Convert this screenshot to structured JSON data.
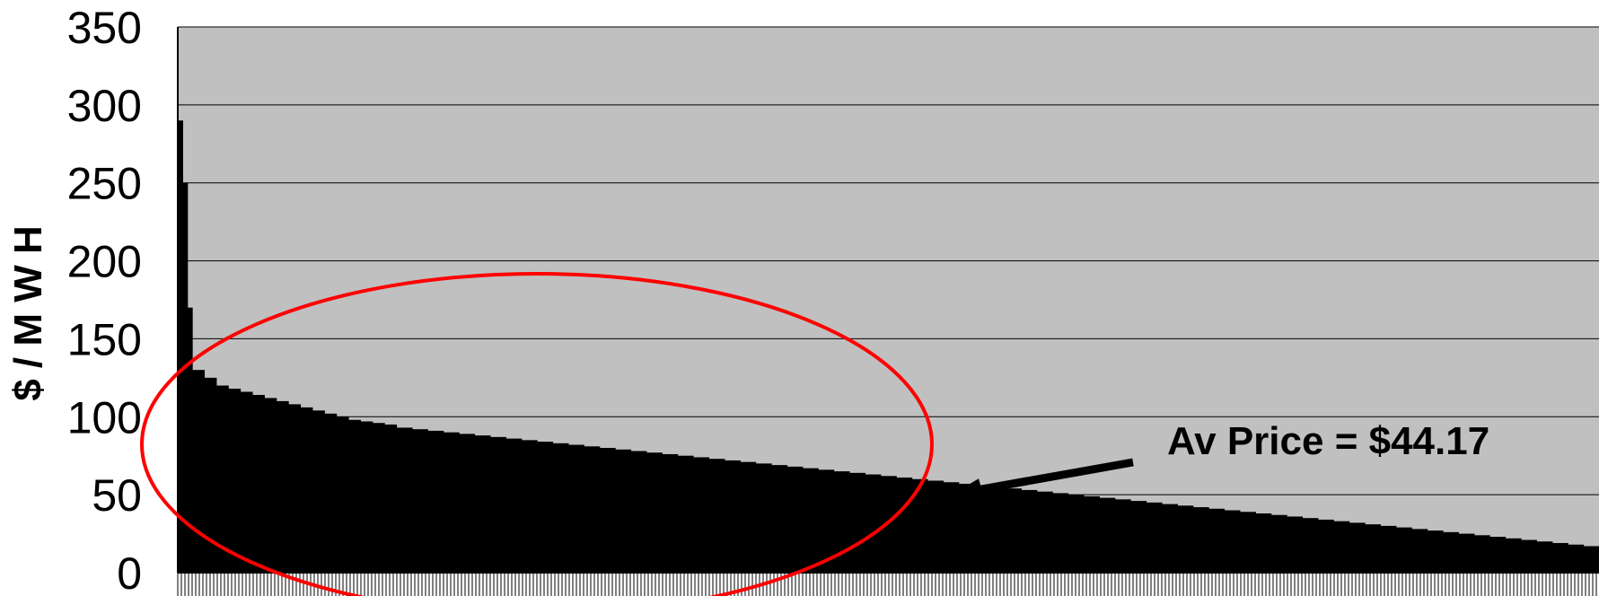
{
  "chart_data": {
    "type": "bar",
    "title": "",
    "xlabel": "",
    "ylabel": "$ / M W H",
    "ylim": [
      0,
      350
    ],
    "yticks": [
      0,
      50,
      100,
      150,
      200,
      250,
      300,
      350
    ],
    "grid": true,
    "legend": "none",
    "colors": {
      "plot_background": "#c0c0c0",
      "bars": "#000000",
      "grid": "#000000",
      "ellipse": "#ff0000"
    },
    "series": [
      {
        "values": [
          290,
          250,
          170,
          130,
          125,
          120,
          118,
          116,
          114,
          112,
          110,
          108,
          106,
          104,
          102,
          100,
          98,
          97,
          96,
          95,
          93,
          92,
          91,
          90,
          89,
          88,
          87,
          86,
          85,
          84,
          83,
          82,
          81,
          80,
          79,
          78,
          77,
          76,
          75,
          74,
          73,
          72,
          71,
          70,
          69,
          68,
          67,
          66,
          65,
          64,
          63,
          62,
          61,
          60,
          59,
          58,
          57,
          56,
          55,
          54,
          53,
          52,
          51,
          50,
          49,
          48,
          47,
          46,
          45,
          44,
          43,
          42,
          41,
          40,
          39,
          38,
          37,
          36,
          35,
          34,
          33,
          32,
          31,
          30,
          29,
          28,
          27,
          26,
          25,
          24,
          23,
          22,
          21,
          20,
          19,
          18,
          17
        ]
      }
    ],
    "annotations": [
      {
        "text": "Av Price = $44.17",
        "value": 44.17
      }
    ]
  }
}
